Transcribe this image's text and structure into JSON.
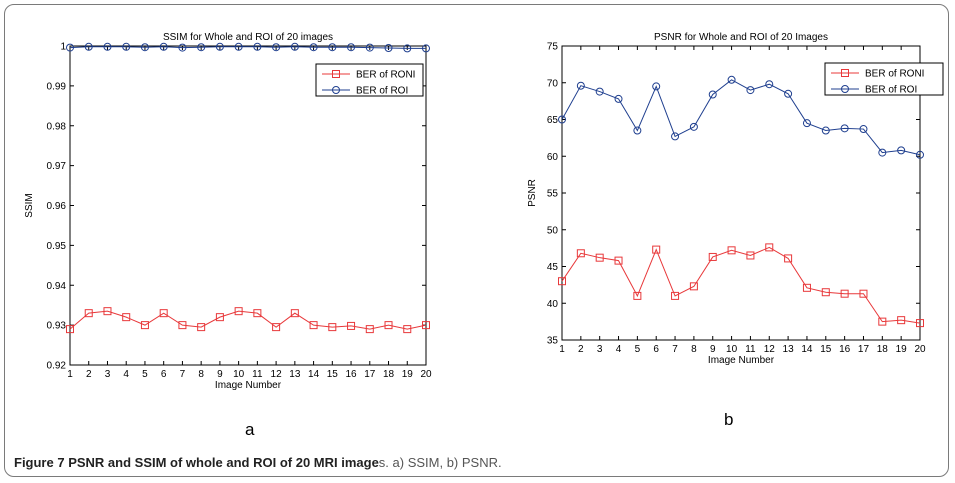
{
  "figure": {
    "panel_a_letter": "a",
    "panel_b_letter": "b",
    "caption_label": "Figure 7",
    "caption_title_bold": "PSNR and SSIM of whole and ROI of 20 MRI image",
    "caption_rest": "s. a) SSIM, b) PSNR."
  },
  "chart_data": [
    {
      "type": "line",
      "title": "SSIM for Whole and ROI of 20 images",
      "xlabel": "Image Number",
      "ylabel": "SSIM",
      "xlim": [
        1,
        20
      ],
      "ylim": [
        0.92,
        1.0
      ],
      "xticks": [
        1,
        2,
        3,
        4,
        5,
        6,
        7,
        8,
        9,
        10,
        11,
        12,
        13,
        14,
        15,
        16,
        17,
        18,
        19,
        20
      ],
      "yticks": [
        0.92,
        0.93,
        0.94,
        0.95,
        0.96,
        0.97,
        0.98,
        0.99,
        1
      ],
      "ytick_labels": [
        "0.92",
        "0.93",
        "0.94",
        "0.95",
        "0.96",
        "0.97",
        "0.98",
        "0.99",
        "1"
      ],
      "legend_position": "top-right",
      "x": [
        1,
        2,
        3,
        4,
        5,
        6,
        7,
        8,
        9,
        10,
        11,
        12,
        13,
        14,
        15,
        16,
        17,
        18,
        19,
        20
      ],
      "series": [
        {
          "name": "BER of RONI",
          "color": "#e8383a",
          "marker": "square",
          "values": [
            0.929,
            0.933,
            0.9335,
            0.932,
            0.93,
            0.933,
            0.93,
            0.9295,
            0.932,
            0.9335,
            0.933,
            0.9295,
            0.933,
            0.93,
            0.9295,
            0.9298,
            0.929,
            0.93,
            0.929,
            0.93
          ]
        },
        {
          "name": "BER of ROI",
          "color": "#1f3f8f",
          "marker": "circle",
          "values": [
            0.9996,
            0.9998,
            0.9998,
            0.9998,
            0.9997,
            0.9998,
            0.9996,
            0.9997,
            0.9998,
            0.9998,
            0.9998,
            0.9997,
            0.9998,
            0.9997,
            0.9997,
            0.9997,
            0.9996,
            0.9995,
            0.9994,
            0.9994
          ]
        }
      ]
    },
    {
      "type": "line",
      "title": "PSNR for Whole and ROI of 20 Images",
      "xlabel": "Image Number",
      "ylabel": "PSNR",
      "xlim": [
        1,
        20
      ],
      "ylim": [
        35,
        75
      ],
      "xticks": [
        1,
        2,
        3,
        4,
        5,
        6,
        7,
        8,
        9,
        10,
        11,
        12,
        13,
        14,
        15,
        16,
        17,
        18,
        19,
        20
      ],
      "yticks": [
        35,
        40,
        45,
        50,
        55,
        60,
        65,
        70,
        75
      ],
      "ytick_labels": [
        "35",
        "40",
        "45",
        "50",
        "55",
        "60",
        "65",
        "70",
        "75"
      ],
      "legend_position": "top-right",
      "x": [
        1,
        2,
        3,
        4,
        5,
        6,
        7,
        8,
        9,
        10,
        11,
        12,
        13,
        14,
        15,
        16,
        17,
        18,
        19,
        20
      ],
      "series": [
        {
          "name": "BER of RONI",
          "color": "#e8383a",
          "marker": "square",
          "values": [
            43,
            46.8,
            46.2,
            45.8,
            41,
            47.3,
            41,
            42.3,
            46.3,
            47.2,
            46.5,
            47.6,
            46.1,
            42.1,
            41.5,
            41.3,
            41.3,
            37.5,
            37.7,
            37.3
          ]
        },
        {
          "name": "BER of ROI",
          "color": "#1f3f8f",
          "marker": "circle",
          "values": [
            65,
            69.6,
            68.8,
            67.8,
            63.5,
            69.5,
            62.7,
            64,
            68.4,
            70.4,
            69,
            69.8,
            68.5,
            64.5,
            63.5,
            63.8,
            63.7,
            60.5,
            60.8,
            60.2
          ]
        }
      ]
    }
  ]
}
